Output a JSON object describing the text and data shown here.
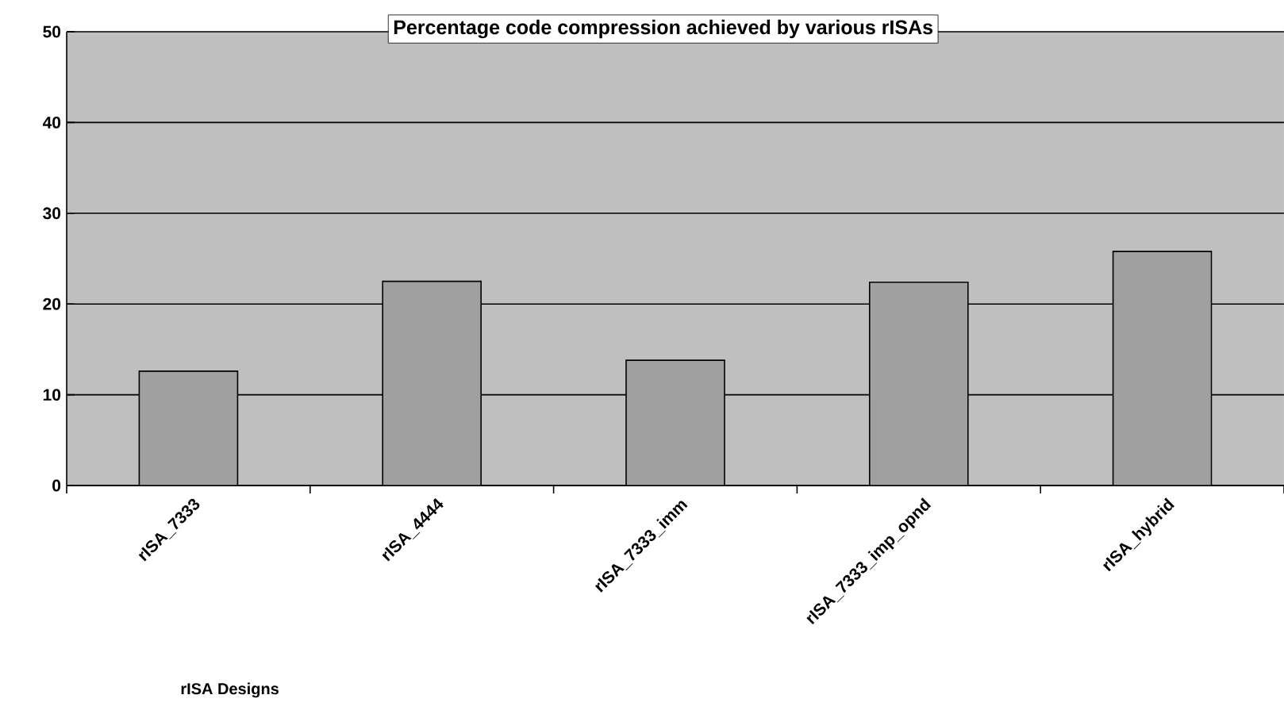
{
  "chart_data": {
    "type": "bar",
    "title": "Percentage code compression achieved by various rISAs",
    "xlabel": "rISA Designs",
    "categories": [
      "rISA_7333",
      "rISA_4444",
      "rISA_7333_imm",
      "rISA_7333_imp_opnd",
      "rISA_hybrid"
    ],
    "values": [
      12.6,
      22.5,
      13.8,
      22.4,
      25.8
    ],
    "color": "#a0a0a0",
    "ylim": [
      0,
      50
    ],
    "yticks": [
      0,
      10,
      20,
      30,
      40,
      50
    ],
    "grid": "y"
  }
}
